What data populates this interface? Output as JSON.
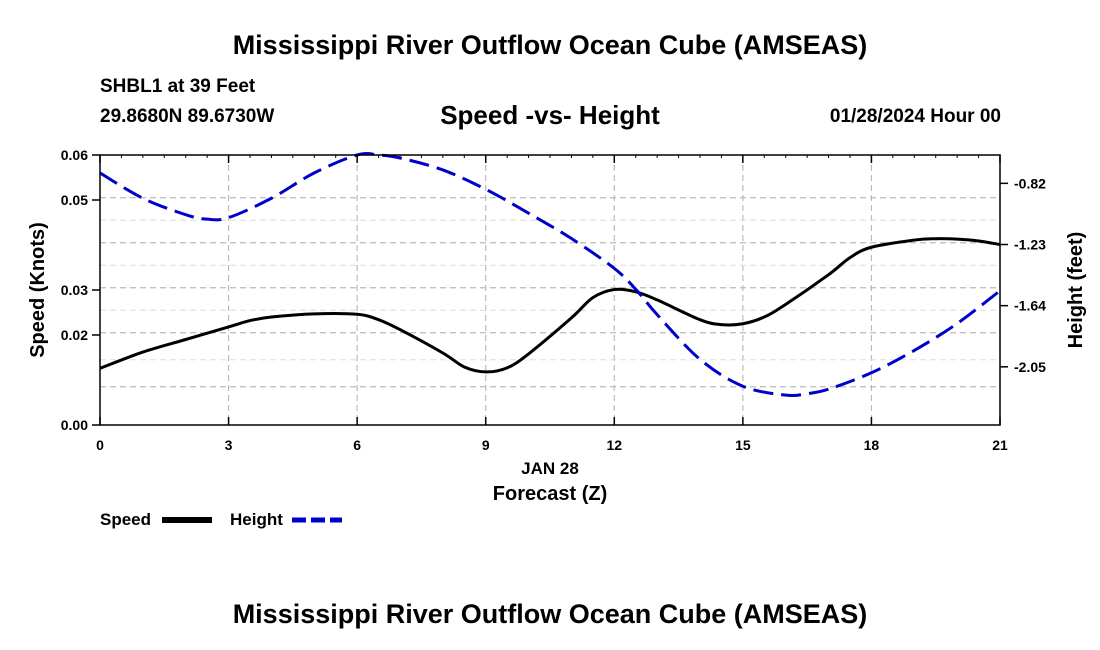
{
  "header": {
    "title": "Mississippi River Outflow Ocean Cube (AMSEAS)",
    "station": "SHBL1 at 39 Feet",
    "coords": "29.8680N  89.6730W",
    "subtitle": "Speed -vs- Height",
    "datetime": "01/28/2024 Hour 00"
  },
  "footer": {
    "title": "Mississippi River Outflow Ocean Cube (AMSEAS)"
  },
  "legend": {
    "speed_label": "Speed",
    "height_label": "Height"
  },
  "colors": {
    "speed": "#000000",
    "height": "#0000cc",
    "grid": "#bbbbbb"
  },
  "chart_data": {
    "type": "line",
    "title": "Speed -vs- Height",
    "xlabel": "Forecast (Z)",
    "xlabel_date": "JAN 28",
    "ylabel_left": "Speed (Knots)",
    "ylabel_right": "Height (feet)",
    "xlim": [
      0,
      21
    ],
    "x_ticks": [
      0,
      3,
      6,
      9,
      12,
      15,
      18,
      21
    ],
    "ylim_left": [
      0,
      0.06
    ],
    "y_ticks_left": [
      "0.00",
      "0.02",
      "0.03",
      "0.05",
      "0.06"
    ],
    "y_ticks_left_values": [
      0,
      0.02,
      0.03,
      0.05,
      0.06
    ],
    "ylim_right": [
      -2.44,
      -0.63
    ],
    "y_ticks_right": [
      "-0.82",
      "-1.23",
      "-1.64",
      "-2.05"
    ],
    "y_ticks_right_values": [
      -0.82,
      -1.23,
      -1.64,
      -2.05
    ],
    "series": [
      {
        "name": "Speed",
        "axis": "left",
        "style": "solid",
        "x": [
          0,
          1,
          2,
          3,
          3.5,
          4,
          5,
          6,
          6.5,
          7,
          8,
          8.5,
          9,
          9.5,
          10,
          11,
          11.5,
          12,
          12.5,
          13,
          14,
          14.5,
          15,
          15.5,
          16,
          17,
          17.5,
          18,
          19,
          19.5,
          20,
          20.5,
          21
        ],
        "values": [
          0.0126,
          0.0162,
          0.019,
          0.0218,
          0.0232,
          0.024,
          0.0247,
          0.0246,
          0.0234,
          0.0212,
          0.016,
          0.0129,
          0.0118,
          0.0127,
          0.0158,
          0.0238,
          0.0283,
          0.0301,
          0.0296,
          0.0278,
          0.0234,
          0.0223,
          0.0225,
          0.024,
          0.0268,
          0.0334,
          0.0372,
          0.0395,
          0.0411,
          0.0414,
          0.0413,
          0.0409,
          0.0401
        ]
      },
      {
        "name": "Height",
        "axis": "right",
        "style": "dashed",
        "x": [
          0,
          1,
          2,
          2.5,
          3,
          4,
          5,
          6,
          6.5,
          7,
          8,
          9,
          10,
          11,
          12,
          12.5,
          13,
          14,
          15,
          16,
          16.5,
          17,
          18,
          19,
          20,
          21
        ],
        "values": [
          -0.75,
          -0.92,
          -1.03,
          -1.06,
          -1.05,
          -0.92,
          -0.75,
          -0.63,
          -0.63,
          -0.65,
          -0.73,
          -0.86,
          -1.02,
          -1.19,
          -1.39,
          -1.53,
          -1.7,
          -2.0,
          -2.18,
          -2.24,
          -2.23,
          -2.2,
          -2.09,
          -1.94,
          -1.76,
          -1.54
        ]
      }
    ]
  }
}
